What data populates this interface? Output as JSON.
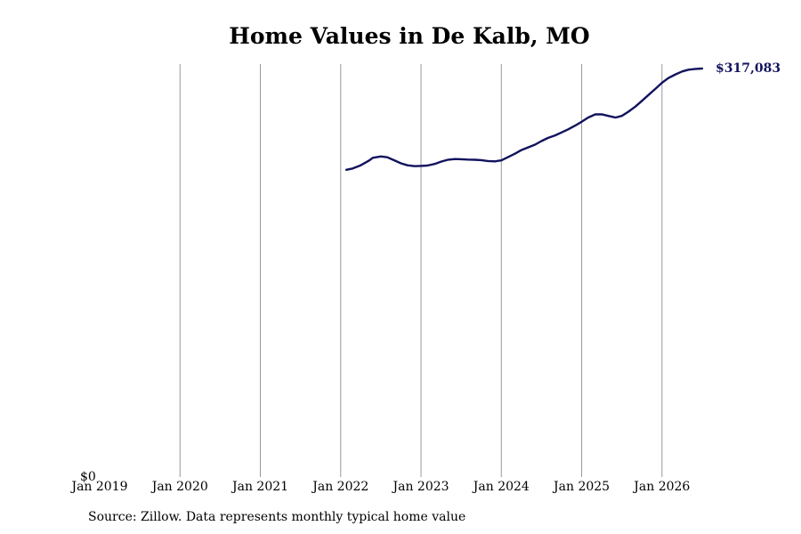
{
  "chart_data": {
    "type": "line",
    "title": "Home Values in De Kalb, MO",
    "source": "Source: Zillow. Data represents monthly typical home value",
    "y_tick_labels": [
      {
        "value": 0,
        "label": "$0"
      }
    ],
    "x_ticks": [
      {
        "t": 2019.0,
        "label": "Jan 2019"
      },
      {
        "t": 2020.0,
        "label": "Jan 2020"
      },
      {
        "t": 2021.0,
        "label": "Jan 2021"
      },
      {
        "t": 2022.0,
        "label": "Jan 2022"
      },
      {
        "t": 2023.0,
        "label": "Jan 2023"
      },
      {
        "t": 2024.0,
        "label": "Jan 2024"
      },
      {
        "t": 2025.0,
        "label": "Jan 2025"
      },
      {
        "t": 2026.0,
        "label": "Jan 2026"
      }
    ],
    "xlim": [
      2019.0,
      2026.7
    ],
    "ylim": [
      0,
      317083
    ],
    "grid": "vertical",
    "series": [
      {
        "color": "#12125e",
        "end_label": "$317,083",
        "points": [
          [
            2022.07,
            238500
          ],
          [
            2022.15,
            239500
          ],
          [
            2022.25,
            242000
          ],
          [
            2022.35,
            245500
          ],
          [
            2022.4,
            247800
          ],
          [
            2022.5,
            248800
          ],
          [
            2022.58,
            248200
          ],
          [
            2022.66,
            246000
          ],
          [
            2022.75,
            243500
          ],
          [
            2022.83,
            242000
          ],
          [
            2022.92,
            241300
          ],
          [
            2023.0,
            241500
          ],
          [
            2023.08,
            241800
          ],
          [
            2023.17,
            243000
          ],
          [
            2023.25,
            244800
          ],
          [
            2023.33,
            246200
          ],
          [
            2023.42,
            246800
          ],
          [
            2023.5,
            246700
          ],
          [
            2023.58,
            246400
          ],
          [
            2023.67,
            246300
          ],
          [
            2023.75,
            246000
          ],
          [
            2023.83,
            245300
          ],
          [
            2023.92,
            245000
          ],
          [
            2024.0,
            245800
          ],
          [
            2024.08,
            248200
          ],
          [
            2024.17,
            251000
          ],
          [
            2024.25,
            253800
          ],
          [
            2024.33,
            255800
          ],
          [
            2024.42,
            258000
          ],
          [
            2024.5,
            260800
          ],
          [
            2024.58,
            263200
          ],
          [
            2024.67,
            265200
          ],
          [
            2024.75,
            267500
          ],
          [
            2024.83,
            269800
          ],
          [
            2024.92,
            272800
          ],
          [
            2025.0,
            275800
          ],
          [
            2025.08,
            279000
          ],
          [
            2025.17,
            281500
          ],
          [
            2025.25,
            281600
          ],
          [
            2025.33,
            280300
          ],
          [
            2025.42,
            279000
          ],
          [
            2025.5,
            280300
          ],
          [
            2025.58,
            283500
          ],
          [
            2025.67,
            287600
          ],
          [
            2025.75,
            292000
          ],
          [
            2025.83,
            296500
          ],
          [
            2025.92,
            301500
          ],
          [
            2026.0,
            306000
          ],
          [
            2026.08,
            309700
          ],
          [
            2026.17,
            312600
          ],
          [
            2026.25,
            314800
          ],
          [
            2026.33,
            316200
          ],
          [
            2026.42,
            316800
          ],
          [
            2026.5,
            317083
          ]
        ]
      }
    ]
  }
}
